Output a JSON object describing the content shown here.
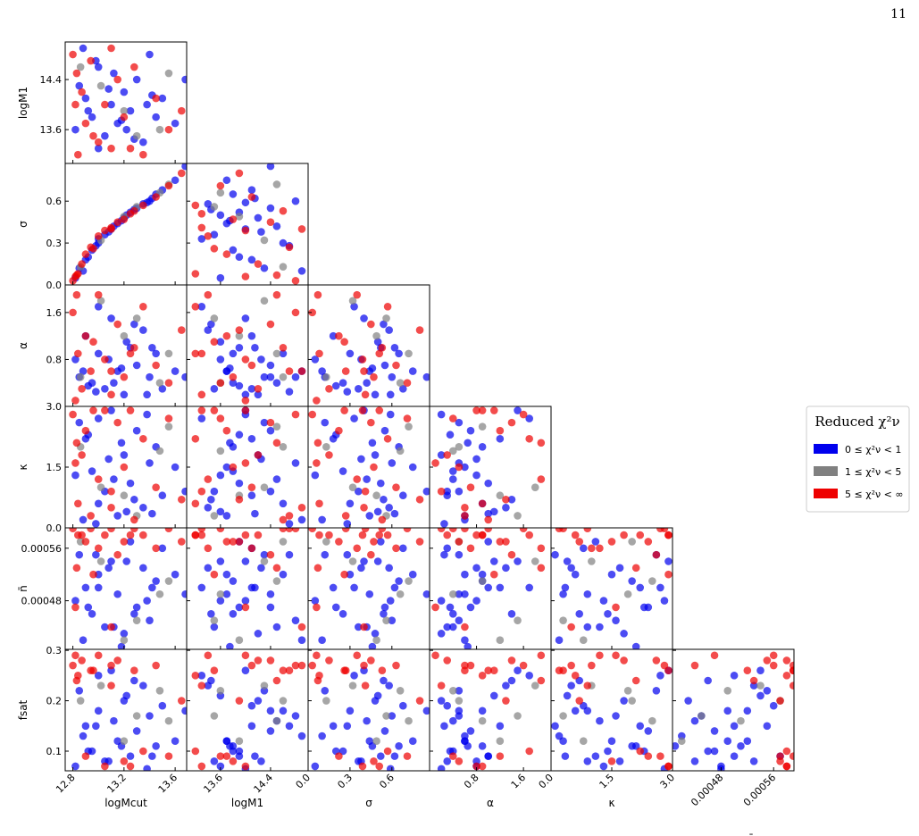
{
  "page_number": "11",
  "chart_data": {
    "type": "corner",
    "legend_title": "Reduced χ²ν",
    "legend_position": "right",
    "parameters": [
      {
        "label": "logMcut",
        "lim": [
          12.74,
          13.69
        ],
        "ticks": [
          12.8,
          13.2,
          13.6
        ]
      },
      {
        "label": "logM1",
        "lim": [
          13.06,
          15.0
        ],
        "ticks": [
          13.6,
          14.4
        ]
      },
      {
        "label": "σ",
        "lim": [
          0,
          0.87
        ],
        "ticks": [
          {
            "value": 0,
            "label": "0.0"
          },
          0.3,
          0.6
        ]
      },
      {
        "label": "α",
        "lim": [
          0,
          2.07
        ],
        "ticks": [
          0.8,
          1.6
        ]
      },
      {
        "label": "κ",
        "lim": [
          0,
          3.0
        ],
        "ticks": [
          {
            "value": 0,
            "label": "0.0"
          },
          1.5,
          {
            "value": 3,
            "label": "3.0"
          }
        ]
      },
      {
        "label": "n̄",
        "lim": [
          0.000406,
          0.000591
        ],
        "ticks": [
          0.00048,
          0.00056
        ]
      },
      {
        "label": "fsat",
        "lim": [
          0.061,
          0.302
        ],
        "ticks": [
          0.1,
          0.2,
          0.3
        ]
      }
    ],
    "series": [
      {
        "name": "0 ≤ χ²ν < 1",
        "color": "#0000ee",
        "samples": [
          [
            12.85,
            14.3,
            0.12,
            0.5,
            2.6,
            0.00055,
            0.22
          ],
          [
            12.9,
            14.1,
            0.18,
            1.2,
            2.2,
            0.0005,
            0.15
          ],
          [
            12.95,
            13.8,
            0.25,
            0.4,
            1.4,
            0.00046,
            0.1
          ],
          [
            13.0,
            14.6,
            0.3,
            0.9,
            0.6,
            0.00052,
            0.18
          ],
          [
            13.05,
            13.5,
            0.36,
            0.3,
            0.9,
            0.00044,
            0.08
          ],
          [
            13.1,
            14.0,
            0.4,
            1.5,
            2.9,
            0.00054,
            0.26
          ],
          [
            13.15,
            13.7,
            0.44,
            0.6,
            0.3,
            0.00049,
            0.12
          ],
          [
            13.2,
            14.2,
            0.48,
            0.2,
            1.8,
            0.00043,
            0.2
          ],
          [
            13.25,
            13.9,
            0.52,
            1.0,
            1.1,
            0.00057,
            0.09
          ],
          [
            13.3,
            14.4,
            0.55,
            0.7,
            2.4,
            0.00047,
            0.14
          ],
          [
            13.35,
            13.4,
            0.58,
            1.3,
            0.5,
            0.00053,
            0.23
          ],
          [
            13.4,
            14.8,
            0.6,
            0.5,
            1.6,
            0.00045,
            0.17
          ],
          [
            13.45,
            13.8,
            0.65,
            0.9,
            2.0,
            0.00051,
            0.11
          ],
          [
            13.5,
            14.1,
            0.68,
            0.3,
            0.8,
            0.00056,
            0.19
          ],
          [
            12.82,
            13.6,
            0.05,
            0.8,
            1.3,
            0.00048,
            0.07
          ],
          [
            12.88,
            14.9,
            0.1,
            0.6,
            0.2,
            0.00042,
            0.13
          ],
          [
            13.0,
            13.3,
            0.33,
            1.7,
            2.7,
            0.0005,
            0.25
          ],
          [
            13.12,
            14.5,
            0.42,
            0.4,
            1.2,
            0.00044,
            0.16
          ],
          [
            13.22,
            13.6,
            0.5,
            1.1,
            0.4,
            0.00054,
            0.21
          ],
          [
            13.38,
            14.0,
            0.59,
            0.2,
            2.8,
            0.00048,
            0.065
          ],
          [
            13.6,
            13.7,
            0.75,
            0.6,
            1.5,
            0.00052,
            0.12
          ],
          [
            13.68,
            14.4,
            0.85,
            0.5,
            0.9,
            0.00049,
            0.18
          ],
          [
            12.92,
            13.9,
            0.2,
            0.35,
            2.3,
            0.00047,
            0.1
          ],
          [
            13.08,
            14.25,
            0.38,
            0.8,
            1.7,
            0.00053,
            0.08
          ],
          [
            13.28,
            13.45,
            0.54,
            1.4,
            0.7,
            0.00046,
            0.24
          ],
          [
            12.98,
            14.7,
            0.28,
            0.25,
            0.1,
            0.00055,
            0.15
          ],
          [
            13.18,
            13.75,
            0.46,
            0.65,
            2.1,
            0.00041,
            0.11
          ],
          [
            13.42,
            14.15,
            0.62,
            1.0,
            0.35,
            0.0005,
            0.09
          ]
        ]
      },
      {
        "name": "1 ≤ χ²ν < 5",
        "color": "#808080",
        "samples": [
          [
            13.02,
            14.3,
            0.32,
            1.8,
            1.0,
            0.00054,
            0.23
          ],
          [
            13.3,
            13.5,
            0.56,
            1.5,
            0.3,
            0.00045,
            0.17
          ],
          [
            13.55,
            14.5,
            0.72,
            0.9,
            2.5,
            0.00051,
            0.16
          ],
          [
            12.86,
            14.6,
            0.13,
            0.5,
            2.0,
            0.00057,
            0.2
          ],
          [
            13.2,
            13.9,
            0.49,
            1.2,
            0.8,
            0.00042,
            0.12
          ],
          [
            13.48,
            13.6,
            0.66,
            0.4,
            1.9,
            0.00049,
            0.22
          ]
        ]
      },
      {
        "name": "5 ≤ χ²ν < ∞",
        "color": "#ee0000",
        "samples": [
          [
            12.8,
            14.8,
            0.03,
            1.6,
            2.8,
            0.00059,
            0.27
          ],
          [
            12.84,
            13.2,
            0.08,
            0.9,
            0.6,
            0.00058,
            0.25
          ],
          [
            12.87,
            14.2,
            0.15,
            0.3,
            1.8,
            0.00058,
            0.28
          ],
          [
            12.9,
            13.7,
            0.22,
            1.2,
            2.4,
            0.00057,
            0.09
          ],
          [
            12.94,
            14.7,
            0.27,
            0.6,
            0.3,
            0.00059,
            0.26
          ],
          [
            13.0,
            13.4,
            0.35,
            1.9,
            1.2,
            0.00056,
            0.29
          ],
          [
            13.05,
            14.0,
            0.39,
            0.8,
            2.9,
            0.00058,
            0.07
          ],
          [
            13.1,
            13.3,
            0.41,
            0.2,
            0.9,
            0.00059,
            0.23
          ],
          [
            13.15,
            14.4,
            0.45,
            1.4,
            2.6,
            0.00055,
            0.28
          ],
          [
            13.2,
            13.8,
            0.47,
            0.5,
            1.5,
            0.00057,
            0.08
          ],
          [
            13.28,
            14.6,
            0.53,
            1.0,
            0.2,
            0.00059,
            0.26
          ],
          [
            13.35,
            13.2,
            0.57,
            1.7,
            2.2,
            0.00058,
            0.1
          ],
          [
            13.45,
            14.1,
            0.63,
            0.7,
            1.0,
            0.00056,
            0.27
          ],
          [
            13.55,
            13.6,
            0.71,
            0.4,
            2.7,
            0.00059,
            0.09
          ],
          [
            13.65,
            13.9,
            0.8,
            1.3,
            0.7,
            0.00057,
            0.2
          ],
          [
            12.82,
            14.0,
            0.06,
            0.1,
            1.6,
            0.00047,
            0.29
          ],
          [
            12.96,
            13.5,
            0.26,
            1.1,
            2.9,
            0.00052,
            0.26
          ],
          [
            13.1,
            14.9,
            0.4,
            0.6,
            0.5,
            0.00044,
            0.27
          ],
          [
            12.83,
            14.5,
            0.07,
            1.9,
            2.1,
            0.00053,
            0.24
          ],
          [
            13.25,
            13.3,
            0.51,
            0.9,
            2.9,
            0.00058,
            0.07
          ]
        ]
      }
    ]
  }
}
